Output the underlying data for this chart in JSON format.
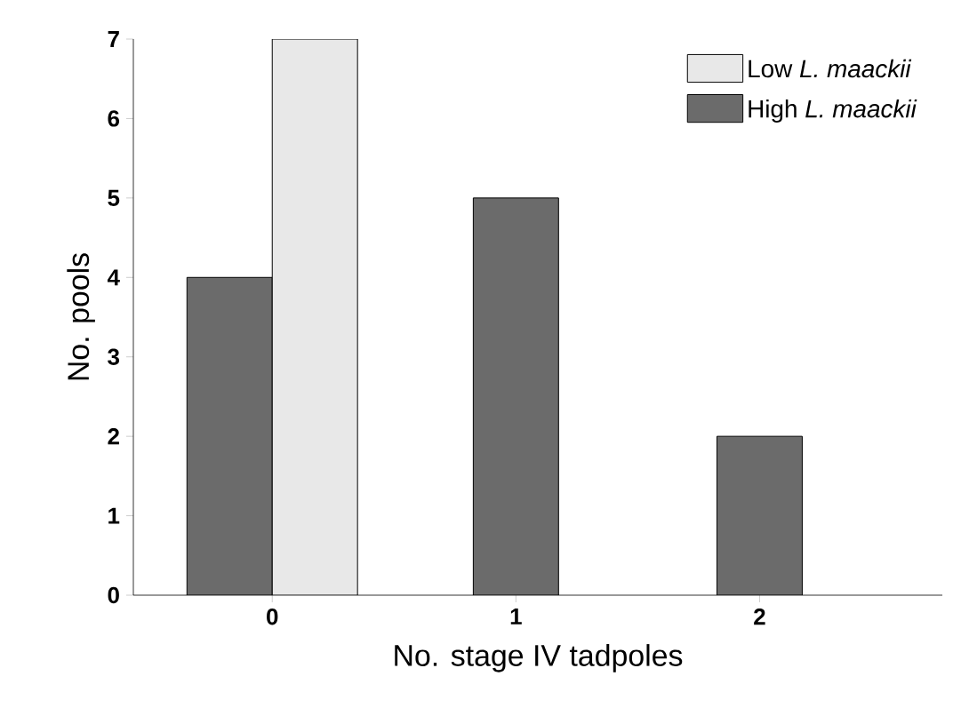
{
  "chart_data": {
    "type": "bar",
    "xlabel": "No. stage IV tadpoles",
    "ylabel": "No. pools",
    "categories": [
      "0",
      "1",
      "2"
    ],
    "ylim": [
      0,
      7
    ],
    "yticks": [
      0,
      1,
      2,
      3,
      4,
      5,
      6,
      7
    ],
    "legend": "top right",
    "series": [
      {
        "name": "High *L. maackii*",
        "color": "#6b6b6b",
        "values": [
          4,
          5,
          2
        ]
      },
      {
        "name": "Low *L. maackii*",
        "color": "#e8e8e8",
        "values": [
          7,
          null,
          null
        ]
      }
    ]
  }
}
